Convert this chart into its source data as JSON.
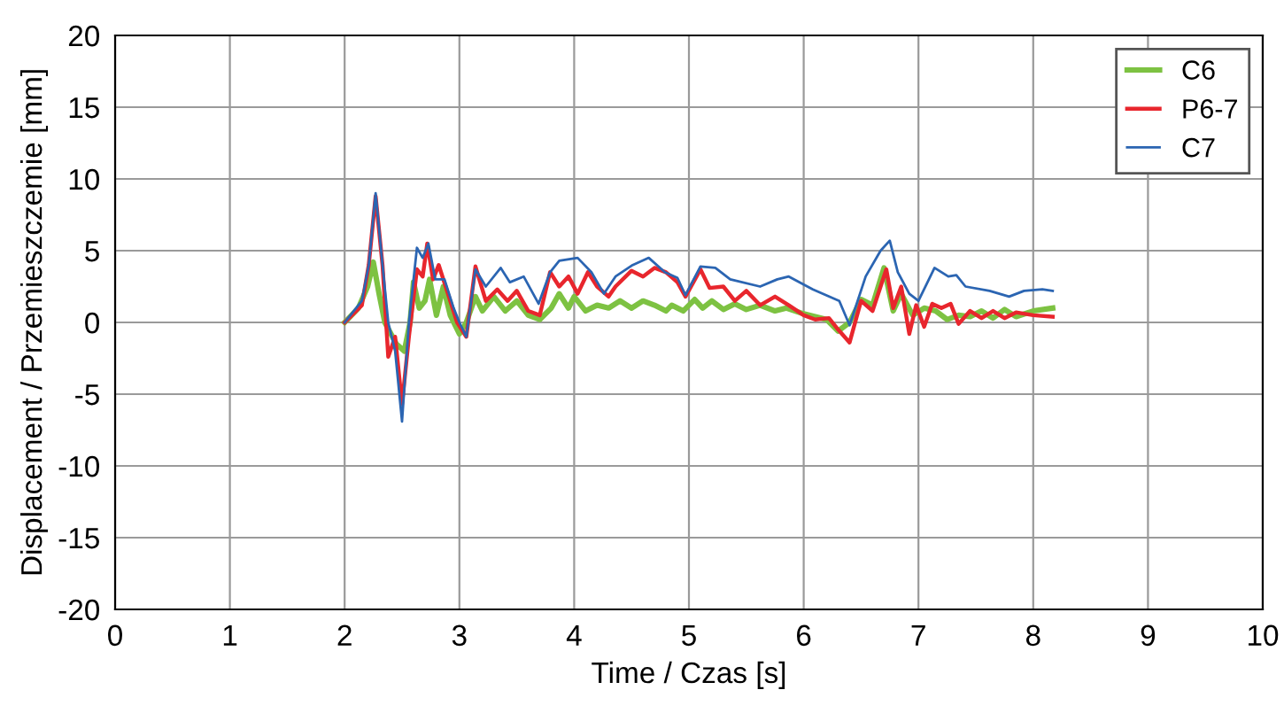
{
  "chart_data": {
    "type": "line",
    "xlabel": "Time / Czas [s]",
    "ylabel": "Displacement / Przemieszczemie [mm]",
    "xlim": [
      0,
      10
    ],
    "ylim": [
      -20,
      20
    ],
    "xticks": [
      0,
      1,
      2,
      3,
      4,
      5,
      6,
      7,
      8,
      9,
      10
    ],
    "yticks": [
      -20,
      -15,
      -10,
      -5,
      0,
      5,
      10,
      15,
      20
    ],
    "grid": true,
    "legend": "top right",
    "marker": "none",
    "line_style": "solid",
    "series": [
      {
        "name": "C6",
        "color": "#7dc242",
        "x": [
          2.0,
          2.12,
          2.2,
          2.25,
          2.3,
          2.35,
          2.45,
          2.52,
          2.57,
          2.6,
          2.65,
          2.7,
          2.74,
          2.8,
          2.86,
          2.92,
          3.0,
          3.06,
          3.14,
          3.2,
          3.3,
          3.4,
          3.5,
          3.6,
          3.7,
          3.8,
          3.87,
          3.95,
          4.0,
          4.1,
          4.2,
          4.3,
          4.4,
          4.5,
          4.6,
          4.7,
          4.8,
          4.85,
          4.95,
          5.05,
          5.12,
          5.2,
          5.3,
          5.4,
          5.5,
          5.62,
          5.75,
          5.85,
          6.0,
          6.2,
          6.3,
          6.4,
          6.5,
          6.6,
          6.7,
          6.78,
          6.85,
          6.95,
          7.05,
          7.15,
          7.25,
          7.35,
          7.45,
          7.55,
          7.65,
          7.75,
          7.85,
          8.0,
          8.17
        ],
        "values": [
          0,
          1,
          2.5,
          4.2,
          2,
          0,
          -1.5,
          -2,
          0,
          2.8,
          1,
          1.5,
          3,
          0.5,
          2.5,
          0.5,
          -0.8,
          0,
          1.8,
          0.8,
          1.8,
          0.8,
          1.5,
          0.5,
          0.2,
          1,
          2,
          1,
          1.8,
          0.8,
          1.2,
          1,
          1.5,
          1,
          1.5,
          1.2,
          0.8,
          1.2,
          0.8,
          1.6,
          1,
          1.5,
          0.9,
          1.3,
          0.9,
          1.2,
          0.8,
          1,
          0.6,
          0.2,
          -0.6,
          0,
          1.6,
          1.2,
          3.8,
          0.8,
          2,
          0.5,
          1,
          0.8,
          0.2,
          0.5,
          0.4,
          0.8,
          0.3,
          0.9,
          0.4,
          0.8,
          1
        ]
      },
      {
        "name": "P6-7",
        "color": "#e8262d",
        "x": [
          2.0,
          2.15,
          2.21,
          2.27,
          2.33,
          2.38,
          2.44,
          2.5,
          2.56,
          2.63,
          2.68,
          2.72,
          2.77,
          2.82,
          2.9,
          2.98,
          3.06,
          3.14,
          3.23,
          3.33,
          3.42,
          3.5,
          3.6,
          3.7,
          3.79,
          3.87,
          3.95,
          4.03,
          4.12,
          4.2,
          4.3,
          4.36,
          4.5,
          4.6,
          4.7,
          4.8,
          4.9,
          4.97,
          5.1,
          5.18,
          5.3,
          5.4,
          5.5,
          5.62,
          5.75,
          5.87,
          6.0,
          6.1,
          6.22,
          6.3,
          6.4,
          6.5,
          6.6,
          6.67,
          6.72,
          6.78,
          6.85,
          6.92,
          6.98,
          7.05,
          7.12,
          7.2,
          7.28,
          7.35,
          7.45,
          7.55,
          7.65,
          7.75,
          7.85,
          8.0,
          8.17
        ],
        "values": [
          0,
          1.2,
          4,
          8.8,
          4,
          -2.4,
          -1,
          -5.7,
          -1,
          3.7,
          3.2,
          5.5,
          3,
          4,
          2,
          0,
          -1,
          3.9,
          1.5,
          2.3,
          1.5,
          2.2,
          0.8,
          0.5,
          3.5,
          2.5,
          3.2,
          2,
          3.5,
          2.5,
          1.8,
          2.5,
          3.6,
          3.2,
          3.8,
          3.5,
          2.8,
          1.8,
          3.7,
          2.4,
          2.5,
          1.5,
          2.2,
          1.2,
          1.8,
          1.2,
          0.5,
          0.2,
          0.3,
          -0.5,
          -1.4,
          1.5,
          0.8,
          2.5,
          3.7,
          1,
          2.5,
          -0.8,
          1.2,
          -0.3,
          1.3,
          1,
          1.3,
          -0.1,
          0.8,
          0.3,
          0.8,
          0.3,
          0.7,
          0.5,
          0.4
        ]
      },
      {
        "name": "C7",
        "color": "#2b65b2",
        "x": [
          2.0,
          2.15,
          2.21,
          2.27,
          2.33,
          2.38,
          2.44,
          2.5,
          2.56,
          2.63,
          2.68,
          2.73,
          2.79,
          2.87,
          2.95,
          3.0,
          3.06,
          3.14,
          3.23,
          3.36,
          3.44,
          3.56,
          3.69,
          3.79,
          3.87,
          4.03,
          4.15,
          4.26,
          4.36,
          4.51,
          4.65,
          4.79,
          4.9,
          4.97,
          5.1,
          5.23,
          5.36,
          5.62,
          5.77,
          5.87,
          6.08,
          6.31,
          6.4,
          6.54,
          6.67,
          6.75,
          6.82,
          6.92,
          7.0,
          7.14,
          7.26,
          7.33,
          7.41,
          7.62,
          7.79,
          7.92,
          8.08,
          8.17
        ],
        "values": [
          0,
          1.5,
          4,
          9,
          4,
          0,
          -2,
          -6.9,
          0,
          5.2,
          4.5,
          5.5,
          3,
          3,
          1,
          0,
          -1,
          3.7,
          2.5,
          3.8,
          2.8,
          3.2,
          1.3,
          3.5,
          4.3,
          4.5,
          3.5,
          2,
          3.2,
          4,
          4.5,
          3.5,
          3.1,
          1.9,
          3.9,
          3.8,
          3,
          2.5,
          3,
          3.2,
          2.3,
          1.5,
          -0.2,
          3.2,
          5,
          5.7,
          3.5,
          2,
          1.5,
          3.8,
          3.2,
          3.3,
          2.5,
          2.2,
          1.8,
          2.2,
          2.3,
          2.2
        ]
      }
    ]
  }
}
